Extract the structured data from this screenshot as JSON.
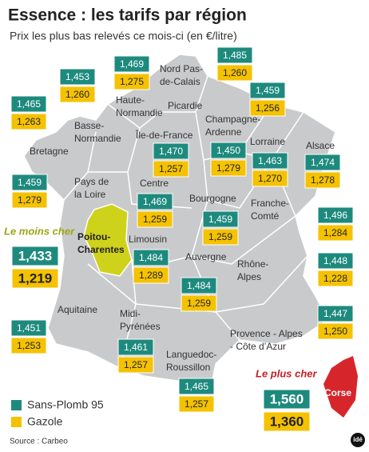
{
  "header": {
    "title": "Essence : les tarifs par région",
    "subtitle": "Prix les plus bas relevés ce mois-ci (en €/litre)"
  },
  "regions": [
    {
      "name": [
        "Bretagne"
      ],
      "sp95": "1,465",
      "gazole": "1,263"
    },
    {
      "name": [
        "Basse-",
        "Normandie"
      ],
      "sp95": "1,453",
      "gazole": "1,260"
    },
    {
      "name": [
        "Haute-",
        "Normandie"
      ],
      "sp95": "1,469",
      "gazole": "1,275"
    },
    {
      "name": [
        "Nord Pas-",
        "de-Calais"
      ],
      "sp95": "1,485",
      "gazole": "1,260"
    },
    {
      "name": [
        "Picardie"
      ],
      "sp95": "1,459",
      "gazole": "1,256"
    },
    {
      "name": [
        "Champagne-",
        "Ardenne"
      ],
      "sp95": "1,450",
      "gazole": "1,279"
    },
    {
      "name": [
        "Île-de-France"
      ],
      "sp95": "1,470",
      "gazole": "1,257"
    },
    {
      "name": [
        "Lorraine"
      ],
      "sp95": "1,463",
      "gazole": "1,270"
    },
    {
      "name": [
        "Alsace"
      ],
      "sp95": "1,474",
      "gazole": "1,278"
    },
    {
      "name": [
        "Pays de",
        "la Loire"
      ],
      "sp95": "1,459",
      "gazole": "1,279"
    },
    {
      "name": [
        "Centre"
      ],
      "sp95": "1,469",
      "gazole": "1,259"
    },
    {
      "name": [
        "Bourgogne"
      ],
      "sp95": "1,459",
      "gazole": "1,259"
    },
    {
      "name": [
        "Franche-",
        "Comté"
      ],
      "sp95": "1,496",
      "gazole": "1,284"
    },
    {
      "name": [
        "Poitou-",
        "Charentes"
      ],
      "sp95": "1,433",
      "gazole": "1,219"
    },
    {
      "name": [
        "Limousin"
      ],
      "sp95": "1,484",
      "gazole": "1,289"
    },
    {
      "name": [
        "Auvergne"
      ],
      "sp95": "1,484",
      "gazole": "1,259"
    },
    {
      "name": [
        "Rhône-",
        "Alpes"
      ],
      "sp95": "1,448",
      "gazole": "1,228"
    },
    {
      "name": [
        "Aquitaine"
      ],
      "sp95": "1,451",
      "gazole": "1,253"
    },
    {
      "name": [
        "Midi-",
        "Pyrénées"
      ],
      "sp95": "1,461",
      "gazole": "1,257"
    },
    {
      "name": [
        "Provence - Alpes",
        "- Côte d’Azur"
      ],
      "sp95": "1,447",
      "gazole": "1,250"
    },
    {
      "name": [
        "Languedoc-",
        "Roussillon"
      ],
      "sp95": "1,465",
      "gazole": "1,257"
    },
    {
      "name": [
        "Corse"
      ],
      "sp95": "1,560",
      "gazole": "1,360"
    }
  ],
  "annotations": {
    "cheapest": "Le moins cher",
    "most_expensive": "Le plus cher"
  },
  "legend": {
    "sp95": "Sans-Plomb 95",
    "gazole": "Gazole"
  },
  "source": "Source : Carbeo",
  "logo": "idé"
}
